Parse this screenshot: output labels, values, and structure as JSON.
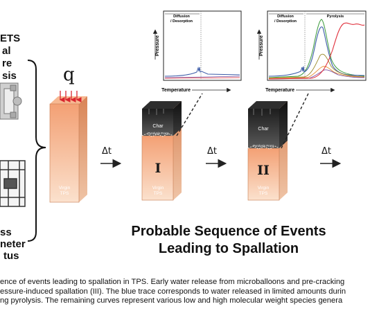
{
  "left_panel": {
    "top_lines": [
      "ETS",
      "al",
      "re",
      "sis"
    ],
    "bottom_lines": [
      "ss",
      "neter",
      "tus"
    ]
  },
  "heat_flux_symbol": "q",
  "time_step_label": "Δt",
  "blocks": [
    {
      "base_label": "Virgin\nTPS"
    },
    {
      "roman": "I",
      "char_label": "Char",
      "front_label": "Pyrolysis Front",
      "base_label": "Virgin\nTPS"
    },
    {
      "roman": "II",
      "char_label": "Char",
      "front_label": "Pyrolysis Front",
      "base_label": "Virgin\nTPS"
    }
  ],
  "plot_1": {
    "region_1": "Diffusion\n/ Desorption",
    "ylabel": "Pressure",
    "xlabel": "Temperature"
  },
  "plot_2": {
    "region_1": "Diffusion\n/ Desorption",
    "region_2": "Pyrolysis",
    "ylabel": "Pressure",
    "xlabel": "Temperature"
  },
  "title_line_1": "Probable Sequence of Events",
  "title_line_2": "Leading to Spallation",
  "caption_lines": [
    "ence of events leading to spallation in TPS. Early water release from microballoons and pre-cracking",
    "essure-induced spallation (III). The blue trace corresponds to water released in limited amounts durin",
    "ng pyrolysis. The remaining curves represent various low and high molecular weight species genera"
  ],
  "colors": {
    "virgin_top": "#f4a27a",
    "virgin_bottom": "#fad9c3",
    "char_dark": "#2a2a2a",
    "blue_trace": "#3b5ba8",
    "red_trace": "#e0303c",
    "green_trace": "#3a9a3a"
  }
}
